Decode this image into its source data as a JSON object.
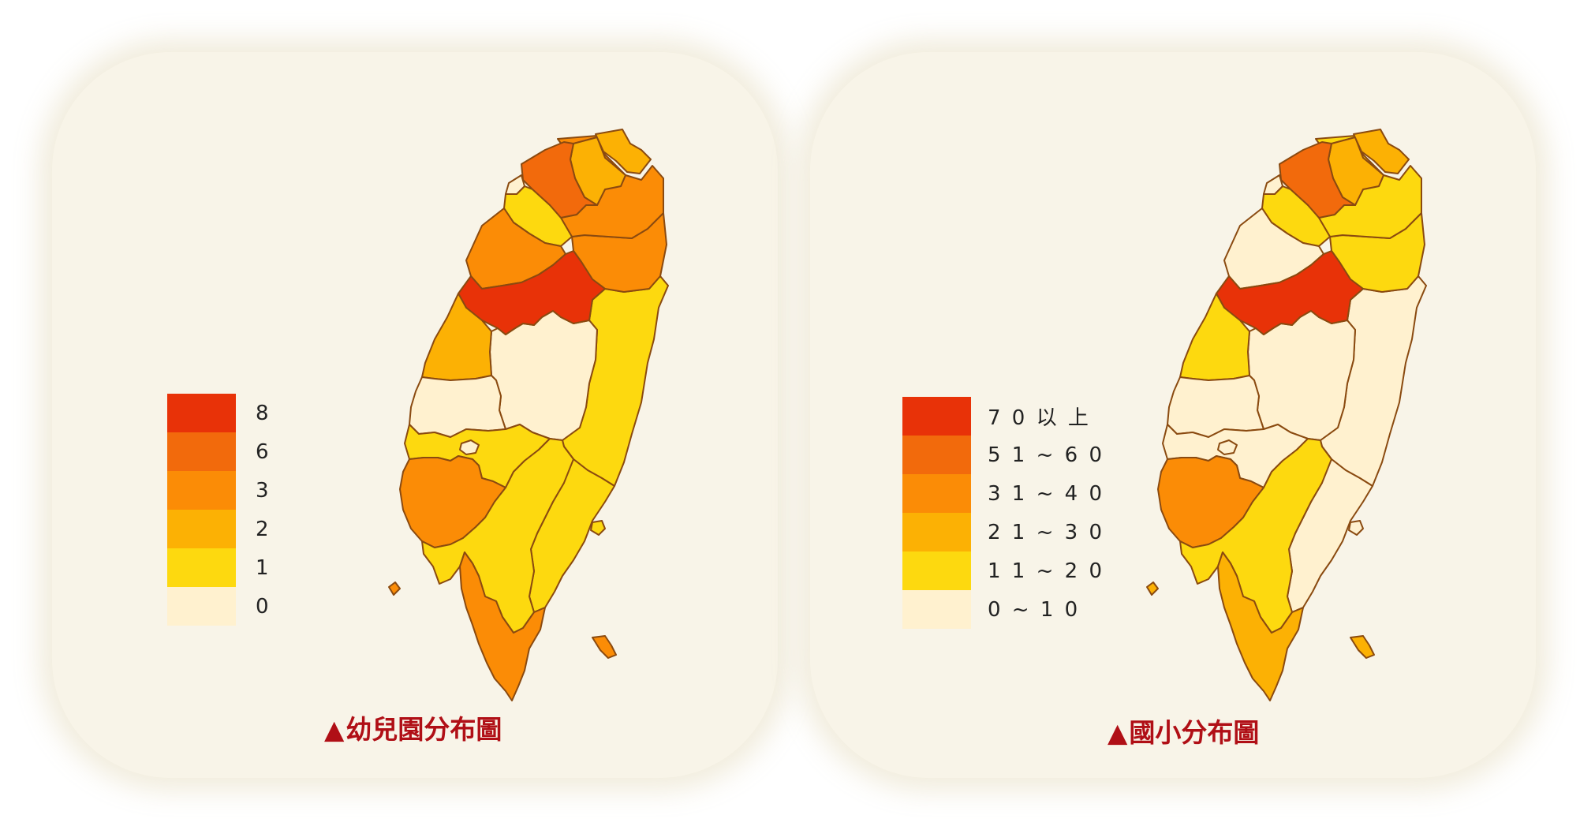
{
  "colors": {
    "c8": "#e83208",
    "c6": "#f26a0c",
    "c3": "#fb8c06",
    "c2": "#fcb104",
    "c1": "#fdd90f",
    "c0": "#fff1cf",
    "border": "#8a4a10",
    "panel": "#f8f4e8",
    "caption": "#b00f16"
  },
  "left_map": {
    "caption_marker": "▲",
    "caption": "幼兒園分布圖",
    "legend": [
      {
        "label": "8",
        "color": "#e83208"
      },
      {
        "label": "6",
        "color": "#f26a0c"
      },
      {
        "label": "3",
        "color": "#fb8c06"
      },
      {
        "label": "2",
        "color": "#fcb104"
      },
      {
        "label": "1",
        "color": "#fdd90f"
      },
      {
        "label": "0",
        "color": "#fff1cf"
      }
    ],
    "regions": {
      "keelung": "c2",
      "taipei": "c2",
      "new_taipei": "c3",
      "taoyuan": "c6",
      "hsinchu_city": "c0",
      "hsinchu_county": "c1",
      "miaoli": "c3",
      "yilan": "c3",
      "taichung": "c8",
      "changhua": "c2",
      "nantou": "c0",
      "hualien": "c1",
      "yunlin": "c0",
      "chiayi_county": "c1",
      "chiayi_city": "c0",
      "tainan": "c3",
      "kaohsiung": "c1",
      "taitung": "c1",
      "pingtung": "c3",
      "penghu": "c3",
      "green_island": "c1",
      "orchid_island": "c3"
    }
  },
  "right_map": {
    "caption_marker": "▲",
    "caption": "國小分布圖",
    "legend": [
      {
        "label": "7 0 以 上",
        "color": "#e83208"
      },
      {
        "label": "5 1 ~ 6 0",
        "color": "#f26a0c"
      },
      {
        "label": "3 1 ~ 4 0",
        "color": "#fb8c06"
      },
      {
        "label": "2 1 ~ 3 0",
        "color": "#fcb104"
      },
      {
        "label": "1 1 ~ 2 0",
        "color": "#fdd90f"
      },
      {
        "label": "0 ~ 1 0",
        "color": "#fff1cf"
      }
    ],
    "regions": {
      "keelung": "c2",
      "taipei": "c2",
      "new_taipei": "c1",
      "taoyuan": "c6",
      "hsinchu_city": "c0",
      "hsinchu_county": "c1",
      "miaoli": "c0",
      "yilan": "c1",
      "taichung": "c8",
      "changhua": "c1",
      "nantou": "c0",
      "hualien": "c0",
      "yunlin": "c0",
      "chiayi_county": "c0",
      "chiayi_city": "c0",
      "tainan": "c3",
      "kaohsiung": "c1",
      "taitung": "c0",
      "pingtung": "c2",
      "penghu": "c2",
      "green_island": "c0",
      "orchid_island": "c2"
    }
  }
}
